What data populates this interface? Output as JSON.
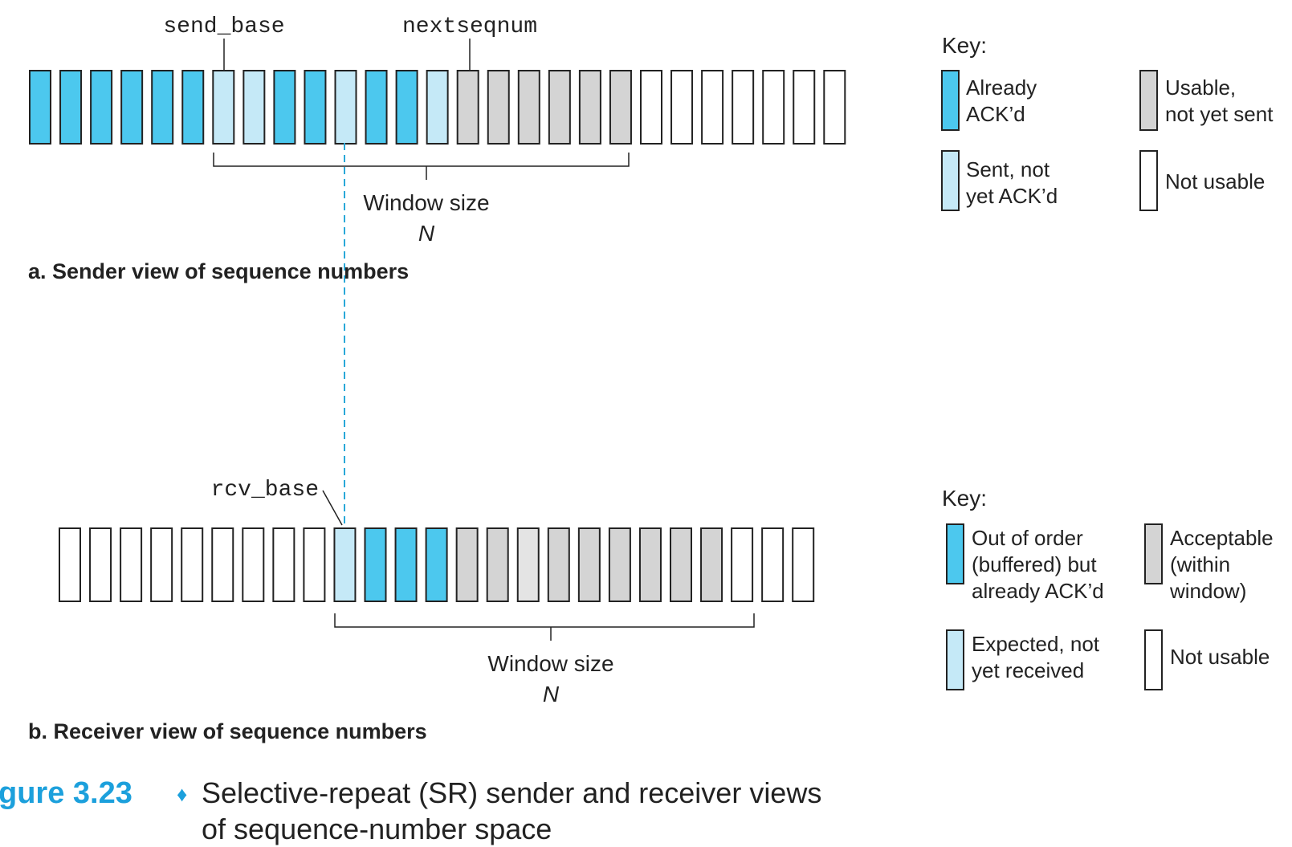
{
  "colors": {
    "dark_blue": "#4cc8ee",
    "light_blue": "#c5e9f7",
    "gray": "#d4d4d4",
    "light_gray": "#e4e4e4",
    "white": "#ffffff",
    "dashed_line": "#29a8d8",
    "caption_blue": "#1ca0dc"
  },
  "sender": {
    "send_base_label": "send_base",
    "nextseqnum_label": "nextseqnum",
    "cells": [
      "dark",
      "dark",
      "dark",
      "dark",
      "dark",
      "dark",
      "light",
      "light",
      "dark",
      "dark",
      "light",
      "dark",
      "dark",
      "light",
      "gray",
      "gray",
      "gray",
      "gray",
      "gray",
      "gray",
      "white",
      "white",
      "white",
      "white",
      "white",
      "white",
      "white"
    ],
    "window_label": "Window size",
    "window_n": "N",
    "title": "a. Sender view of sequence numbers"
  },
  "receiver": {
    "rcv_base_label": "rcv_base",
    "cells": [
      "white",
      "white",
      "white",
      "white",
      "white",
      "white",
      "white",
      "white",
      "white",
      "light",
      "dark",
      "dark",
      "dark",
      "gray",
      "gray",
      "lightgray",
      "gray",
      "gray",
      "gray",
      "gray",
      "gray",
      "gray",
      "white",
      "white",
      "white"
    ],
    "window_label": "Window size",
    "window_n": "N",
    "title": "b. Receiver view of sequence numbers"
  },
  "key_a": {
    "title": "Key:",
    "items": [
      {
        "color": "dark",
        "lines": [
          "Already",
          "ACK’d"
        ]
      },
      {
        "color": "gray",
        "lines": [
          "Usable,",
          "not yet sent"
        ]
      },
      {
        "color": "light",
        "lines": [
          "Sent, not",
          "yet ACK’d"
        ]
      },
      {
        "color": "white",
        "lines": [
          "Not usable"
        ]
      }
    ]
  },
  "key_b": {
    "title": "Key:",
    "items": [
      {
        "color": "dark",
        "lines": [
          "Out of order",
          "(buffered) but",
          "already ACK’d"
        ]
      },
      {
        "color": "gray",
        "lines": [
          "Acceptable",
          "(within",
          "window)"
        ]
      },
      {
        "color": "light",
        "lines": [
          "Expected, not",
          "yet received"
        ]
      },
      {
        "color": "white",
        "lines": [
          "Not usable"
        ]
      }
    ]
  },
  "caption": {
    "figure_label": "gure 3.23",
    "bullet": "♦",
    "line1": "Selective-repeat (SR) sender and receiver views",
    "line2": "of sequence-number space"
  }
}
